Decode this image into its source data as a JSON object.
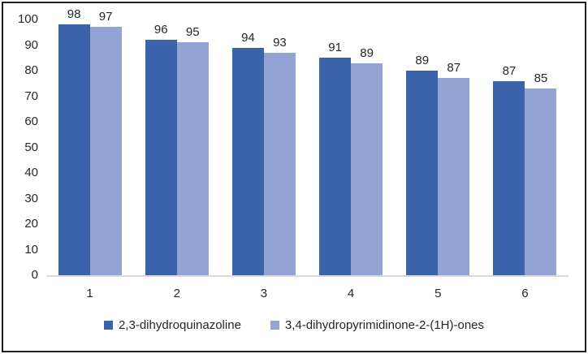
{
  "chart_data": {
    "type": "bar",
    "title": "",
    "xlabel": "",
    "ylabel": "",
    "grid": false,
    "legend_position": "bottom",
    "categories": [
      "1",
      "2",
      "3",
      "4",
      "5",
      "6"
    ],
    "series": [
      {
        "name": "2,3-dihydroquinazoline",
        "color": "#3b63ab",
        "values": [
          98,
          96,
          94,
          91,
          89,
          87
        ],
        "data_labels": [
          "98",
          "96",
          "94",
          "91",
          "89",
          "87"
        ],
        "bar_heights_visual": [
          98,
          92,
          89,
          85,
          80,
          76
        ]
      },
      {
        "name": "3,4-dihydropyrimidinone-2-(1H)-ones",
        "color": "#93a4d4",
        "values": [
          97,
          95,
          93,
          89,
          87,
          85
        ],
        "data_labels": [
          "97",
          "95",
          "93",
          "89",
          "87",
          "85"
        ],
        "bar_heights_visual": [
          97,
          91,
          87,
          83,
          77,
          73
        ]
      }
    ],
    "y_axis": {
      "min": 0,
      "max": 100,
      "tick_step": 10,
      "ticks": [
        "0",
        "10",
        "20",
        "30",
        "40",
        "50",
        "60",
        "70",
        "80",
        "90",
        "100"
      ]
    },
    "colors": {
      "axis_line": "#d9d9d9",
      "text": "#262626",
      "border": "#1f1f1f",
      "background": "#ffffff"
    }
  }
}
